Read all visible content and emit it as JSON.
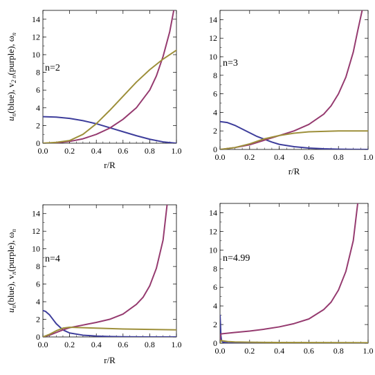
{
  "colors": {
    "u": "#3d3d9b",
    "v": "#953a6f",
    "w": "#9d8f3a"
  },
  "chart_data": [
    {
      "type": "line",
      "panel_label": "n=2",
      "xlabel": "r/R",
      "ylabel_parts": [
        "u",
        "n",
        "(blue), v",
        "2 n",
        "(purple), ω",
        "n"
      ],
      "xlim": [
        0,
        1
      ],
      "ylim": [
        0,
        15
      ],
      "xticks": [
        "0.0",
        "0.2",
        "0.4",
        "0.6",
        "0.8",
        "1.0"
      ],
      "yticks": [
        "0",
        "2",
        "4",
        "6",
        "8",
        "10",
        "12",
        "14"
      ],
      "series": [
        {
          "key": "u",
          "x": [
            0,
            0.1,
            0.2,
            0.3,
            0.4,
            0.5,
            0.6,
            0.7,
            0.8,
            0.9,
            1.0
          ],
          "y": [
            3.0,
            2.95,
            2.8,
            2.55,
            2.2,
            1.75,
            1.3,
            0.85,
            0.45,
            0.15,
            0.0
          ]
        },
        {
          "key": "v",
          "x": [
            0,
            0.1,
            0.2,
            0.3,
            0.4,
            0.5,
            0.6,
            0.7,
            0.8,
            0.85,
            0.9,
            0.95,
            0.98
          ],
          "y": [
            0.0,
            0.05,
            0.2,
            0.5,
            1.0,
            1.7,
            2.7,
            4.0,
            6.0,
            7.6,
            9.8,
            12.6,
            15.0
          ]
        },
        {
          "key": "w",
          "x": [
            0,
            0.1,
            0.2,
            0.3,
            0.4,
            0.5,
            0.6,
            0.7,
            0.8,
            0.9,
            1.0
          ],
          "y": [
            0.0,
            0.1,
            0.3,
            1.0,
            2.2,
            3.7,
            5.3,
            6.9,
            8.3,
            9.5,
            10.5
          ]
        }
      ]
    },
    {
      "type": "line",
      "panel_label": "n=3",
      "xlabel": "r/R",
      "ylabel_parts": [],
      "xlim": [
        0,
        1
      ],
      "ylim": [
        0,
        15
      ],
      "xticks": [
        "0.0",
        "0.2",
        "0.4",
        "0.6",
        "0.8",
        "1.0"
      ],
      "yticks": [
        "0",
        "2",
        "4",
        "6",
        "8",
        "10",
        "12",
        "14"
      ],
      "series": [
        {
          "key": "u",
          "x": [
            0,
            0.05,
            0.1,
            0.15,
            0.2,
            0.25,
            0.3,
            0.35,
            0.4,
            0.5,
            0.6,
            0.7,
            0.8,
            0.9,
            1.0
          ],
          "y": [
            3.0,
            2.9,
            2.6,
            2.2,
            1.8,
            1.4,
            1.1,
            0.8,
            0.55,
            0.3,
            0.15,
            0.07,
            0.03,
            0.01,
            0.0
          ]
        },
        {
          "key": "v",
          "x": [
            0,
            0.1,
            0.2,
            0.3,
            0.4,
            0.5,
            0.6,
            0.7,
            0.75,
            0.8,
            0.85,
            0.9,
            0.93,
            0.96
          ],
          "y": [
            0.0,
            0.2,
            0.5,
            1.0,
            1.5,
            2.0,
            2.7,
            3.8,
            4.7,
            6.0,
            7.8,
            10.5,
            12.8,
            15.0
          ]
        },
        {
          "key": "w",
          "x": [
            0,
            0.1,
            0.2,
            0.3,
            0.4,
            0.5,
            0.6,
            0.7,
            0.8,
            0.9,
            1.0
          ],
          "y": [
            0.0,
            0.2,
            0.6,
            1.15,
            1.5,
            1.75,
            1.9,
            1.95,
            2.0,
            2.0,
            2.0
          ]
        }
      ]
    },
    {
      "type": "line",
      "panel_label": "n=4",
      "xlabel": "r/R",
      "ylabel_parts": [
        "u",
        "n",
        "(blue), v",
        "n",
        "(purple), ω",
        "n"
      ],
      "xlim": [
        0,
        1
      ],
      "ylim": [
        0,
        15
      ],
      "xticks": [
        "0.0",
        "0.2",
        "0.4",
        "0.6",
        "0.8",
        "1.0"
      ],
      "yticks": [
        "0",
        "2",
        "4",
        "6",
        "8",
        "10",
        "12",
        "14"
      ],
      "series": [
        {
          "key": "u",
          "x": [
            0,
            0.02,
            0.05,
            0.08,
            0.1,
            0.15,
            0.2,
            0.3,
            0.4,
            0.5,
            0.6,
            0.8,
            1.0
          ],
          "y": [
            3.0,
            2.9,
            2.5,
            1.9,
            1.5,
            0.8,
            0.45,
            0.2,
            0.1,
            0.05,
            0.02,
            0.0,
            0.0
          ]
        },
        {
          "key": "v",
          "x": [
            0,
            0.05,
            0.1,
            0.15,
            0.2,
            0.3,
            0.4,
            0.5,
            0.6,
            0.7,
            0.75,
            0.8,
            0.85,
            0.9,
            0.93
          ],
          "y": [
            0.0,
            0.2,
            0.5,
            0.8,
            1.05,
            1.35,
            1.65,
            2.0,
            2.6,
            3.7,
            4.5,
            5.8,
            7.8,
            11.0,
            15.0
          ]
        },
        {
          "key": "w",
          "x": [
            0,
            0.05,
            0.1,
            0.15,
            0.2,
            0.3,
            0.4,
            0.5,
            0.6,
            0.8,
            1.0
          ],
          "y": [
            0.0,
            0.3,
            0.7,
            1.0,
            1.1,
            1.05,
            1.0,
            0.95,
            0.9,
            0.85,
            0.8
          ]
        }
      ]
    },
    {
      "type": "line",
      "panel_label": "n=4.99",
      "xlabel": "",
      "ylabel_parts": [],
      "xlim": [
        0,
        1
      ],
      "ylim": [
        0,
        15
      ],
      "xticks": [
        "0.0",
        "0.2",
        "0.4",
        "0.6",
        "0.8",
        "1.0"
      ],
      "yticks": [
        "0",
        "2",
        "4",
        "6",
        "8",
        "10",
        "12",
        "14"
      ],
      "series": [
        {
          "key": "u",
          "x": [
            0,
            0.003,
            0.006,
            0.01,
            0.02,
            0.05,
            0.1,
            0.2,
            0.5,
            1.0
          ],
          "y": [
            3.0,
            2.0,
            0.8,
            0.3,
            0.1,
            0.03,
            0.01,
            0.0,
            0.0,
            0.0
          ]
        },
        {
          "key": "v",
          "x": [
            0,
            0.002,
            0.005,
            0.01,
            0.1,
            0.2,
            0.3,
            0.4,
            0.5,
            0.6,
            0.7,
            0.75,
            0.8,
            0.85,
            0.9,
            0.93
          ],
          "y": [
            0.0,
            0.8,
            0.95,
            1.0,
            1.15,
            1.3,
            1.5,
            1.75,
            2.1,
            2.6,
            3.6,
            4.4,
            5.7,
            7.7,
            11.0,
            15.0
          ]
        },
        {
          "key": "w",
          "x": [
            0,
            0.005,
            0.02,
            0.05,
            0.1,
            0.2,
            0.4,
            1.0
          ],
          "y": [
            0.0,
            0.3,
            0.25,
            0.18,
            0.13,
            0.1,
            0.07,
            0.05
          ]
        }
      ]
    }
  ]
}
